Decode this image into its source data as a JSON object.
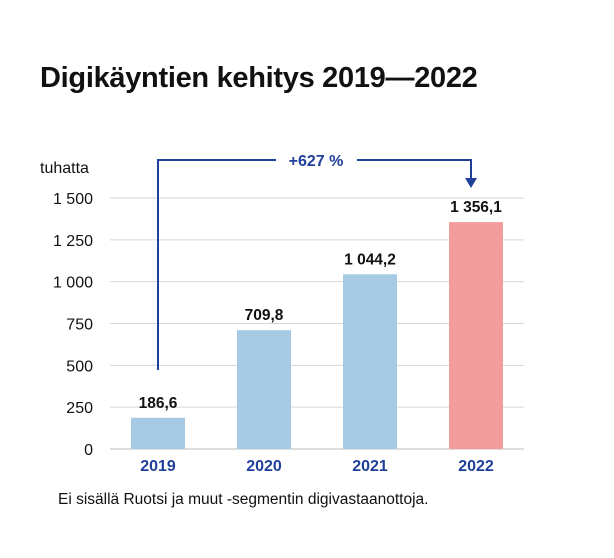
{
  "chart_data": {
    "type": "bar",
    "title": "Digikäyntien kehitys 2019—2022",
    "ylabel": "tuhatta",
    "categories": [
      "2019",
      "2020",
      "2021",
      "2022"
    ],
    "values": [
      186.6,
      709.8,
      1044.2,
      1356.1
    ],
    "value_labels": [
      "186,6",
      "709,8",
      "1 044,2",
      "1 356,1"
    ],
    "ylim": [
      0,
      1500
    ],
    "yticks": [
      0,
      250,
      500,
      750,
      1000,
      1250,
      1500
    ],
    "ytick_labels": [
      "0",
      "250",
      "500",
      "750",
      "1 000",
      "1 250",
      "1 500"
    ],
    "grid": true,
    "colors": [
      "#a7cae4",
      "#a7cae4",
      "#a7cae4",
      "#f29c9c"
    ],
    "annotation": "+627 %",
    "annotation_color": "#1f3f9a",
    "note": "Ei sisällä Ruotsi ja muut -segmentin digivastaanottoja."
  }
}
